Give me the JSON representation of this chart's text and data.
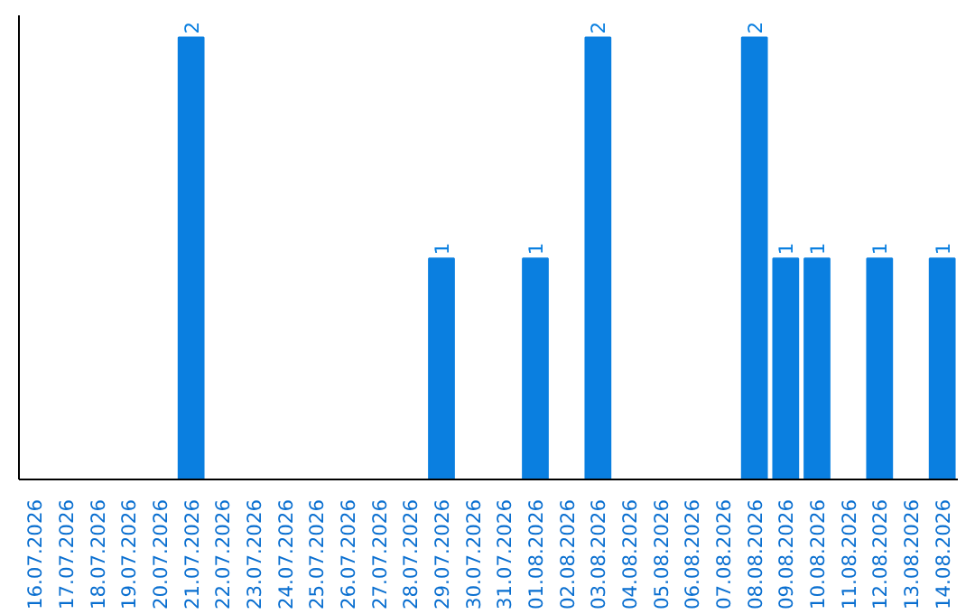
{
  "chart_data": {
    "type": "bar",
    "categories": [
      "16.07.2026",
      "17.07.2026",
      "18.07.2026",
      "19.07.2026",
      "20.07.2026",
      "21.07.2026",
      "22.07.2026",
      "23.07.2026",
      "24.07.2026",
      "25.07.2026",
      "26.07.2026",
      "27.07.2026",
      "28.07.2026",
      "29.07.2026",
      "30.07.2026",
      "31.07.2026",
      "01.08.2026",
      "02.08.2026",
      "03.08.2026",
      "04.08.2026",
      "05.08.2026",
      "06.08.2026",
      "07.08.2026",
      "08.08.2026",
      "09.08.2026",
      "10.08.2026",
      "11.08.2026",
      "12.08.2026",
      "13.08.2026",
      "14.08.2026"
    ],
    "values": [
      0,
      0,
      0,
      0,
      0,
      2,
      0,
      0,
      0,
      0,
      0,
      0,
      0,
      1,
      0,
      0,
      1,
      0,
      2,
      0,
      0,
      0,
      0,
      2,
      1,
      1,
      0,
      1,
      0,
      1
    ],
    "value_labels": [
      null,
      null,
      null,
      null,
      null,
      "2",
      null,
      null,
      null,
      null,
      null,
      null,
      null,
      "1",
      null,
      null,
      "1",
      null,
      "2",
      null,
      null,
      null,
      null,
      "2",
      "1",
      "1",
      null,
      "1",
      null,
      "1"
    ],
    "color": "#0a7fe0",
    "ylim": [
      0,
      2.1
    ],
    "tick_labels": "x",
    "grid": false
  }
}
